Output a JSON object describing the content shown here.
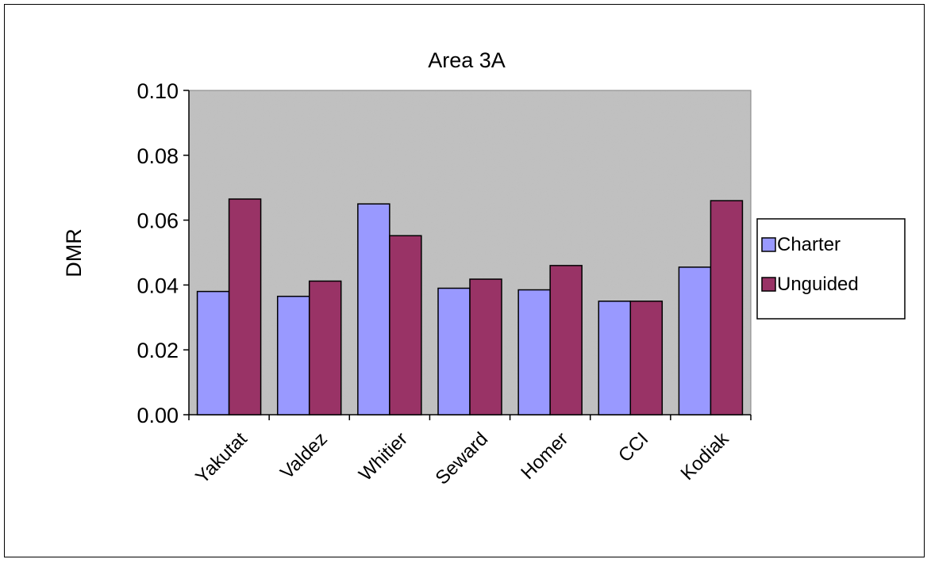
{
  "chart_data": {
    "type": "bar",
    "title": "Area 3A",
    "xlabel": "",
    "ylabel": "DMR",
    "ylim": [
      0,
      0.1
    ],
    "yticks": [
      "0.00",
      "0.02",
      "0.04",
      "0.06",
      "0.08",
      "0.10"
    ],
    "categories": [
      "Yakutat",
      "Valdez",
      "Whitier",
      "Seward",
      "Homer",
      "CCI",
      "Kodiak"
    ],
    "series": [
      {
        "name": "Charter",
        "color": "#9999ff",
        "values": [
          0.038,
          0.0365,
          0.065,
          0.039,
          0.0385,
          0.035,
          0.0455
        ]
      },
      {
        "name": "Unguided",
        "color": "#993366",
        "values": [
          0.0665,
          0.0412,
          0.0552,
          0.0418,
          0.046,
          0.035,
          0.066
        ]
      }
    ],
    "grid": false,
    "plot_background": "#c0c0c0",
    "legend_position": "right"
  }
}
